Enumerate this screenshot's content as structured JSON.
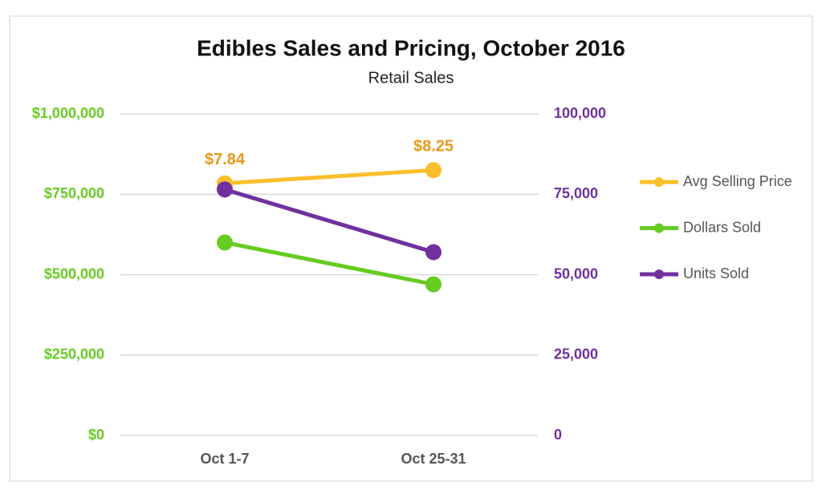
{
  "chart_data": {
    "type": "line",
    "title": "Edibles Sales and Pricing, October 2016",
    "subtitle": "Retail Sales",
    "categories": [
      "Oct 1-7",
      "Oct 25-31"
    ],
    "series": [
      {
        "name": "Avg Selling Price",
        "color": "#fbbf2a",
        "axis": "y3",
        "values": [
          7.84,
          8.25
        ],
        "value_labels": [
          "$7.84",
          "$8.25"
        ]
      },
      {
        "name": "Dollars Sold",
        "color": "#66cc22",
        "values": [
          600000,
          470000
        ]
      },
      {
        "name": "Units Sold",
        "color": "#7030a0",
        "axis": "y2",
        "values": [
          76500,
          57000
        ]
      }
    ],
    "ylim": [
      0,
      1000000
    ],
    "yticks": [
      {
        "value": 0,
        "label": "$0"
      },
      {
        "value": 250000,
        "label": "$250,000"
      },
      {
        "value": 500000,
        "label": "$500,000"
      },
      {
        "value": 750000,
        "label": "$750,000"
      },
      {
        "value": 1000000,
        "label": "$1,000,000"
      }
    ],
    "y2lim": [
      0,
      100000
    ],
    "y2ticks": [
      0,
      {
        "value": 25000,
        "label": "25,000"
      },
      {
        "value": 50000,
        "label": "50,000"
      },
      {
        "value": 75000,
        "label": "75,000"
      },
      {
        "value": 100000,
        "label": "100,000"
      }
    ],
    "y3lim": [
      0,
      10
    ],
    "grid": true,
    "legend": "right"
  }
}
